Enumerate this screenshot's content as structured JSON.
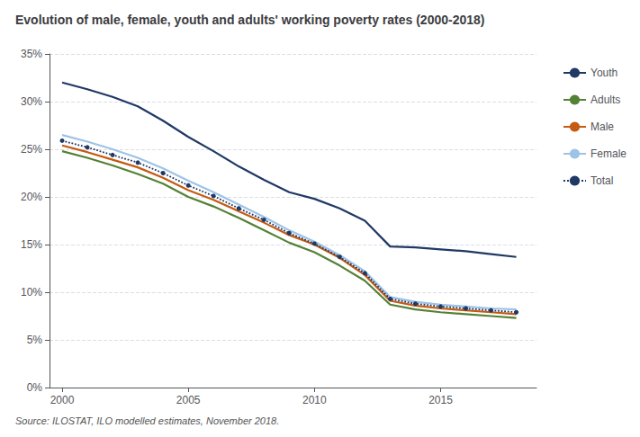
{
  "chart_data": {
    "type": "line",
    "title": "Evolution of male, female, youth and adults' working poverty rates (2000-2018)",
    "annotations": [
      "Source: ILOSTAT, ILO modelled estimates, November 2018."
    ],
    "x": [
      2000,
      2001,
      2002,
      2003,
      2004,
      2005,
      2006,
      2007,
      2008,
      2009,
      2010,
      2011,
      2012,
      2013,
      2014,
      2015,
      2016,
      2017,
      2018
    ],
    "series": [
      {
        "name": "Youth",
        "color": "#1f3864",
        "line_style": "solid",
        "values": [
          0.32,
          0.313,
          0.305,
          0.295,
          0.28,
          0.263,
          0.248,
          0.232,
          0.218,
          0.205,
          0.198,
          0.188,
          0.175,
          0.148,
          0.147,
          0.145,
          0.143,
          0.14,
          0.137
        ]
      },
      {
        "name": "Adults",
        "color": "#538135",
        "line_style": "solid",
        "values": [
          0.248,
          0.241,
          0.233,
          0.224,
          0.214,
          0.2,
          0.19,
          0.178,
          0.165,
          0.152,
          0.142,
          0.128,
          0.112,
          0.087,
          0.082,
          0.079,
          0.077,
          0.075,
          0.073
        ]
      },
      {
        "name": "Male",
        "color": "#c55a11",
        "line_style": "solid",
        "values": [
          0.254,
          0.247,
          0.239,
          0.231,
          0.22,
          0.207,
          0.197,
          0.185,
          0.173,
          0.16,
          0.15,
          0.136,
          0.118,
          0.091,
          0.086,
          0.083,
          0.081,
          0.079,
          0.077
        ]
      },
      {
        "name": "Female",
        "color": "#9dc3e6",
        "line_style": "solid",
        "values": [
          0.265,
          0.258,
          0.25,
          0.241,
          0.23,
          0.217,
          0.205,
          0.192,
          0.179,
          0.165,
          0.153,
          0.139,
          0.122,
          0.095,
          0.09,
          0.087,
          0.085,
          0.083,
          0.082
        ]
      },
      {
        "name": "Total",
        "color": "#1f3864",
        "line_style": "dotted",
        "marker": "circle",
        "values": [
          0.259,
          0.252,
          0.244,
          0.236,
          0.225,
          0.212,
          0.201,
          0.188,
          0.176,
          0.162,
          0.151,
          0.137,
          0.12,
          0.093,
          0.088,
          0.085,
          0.083,
          0.081,
          0.079
        ]
      }
    ],
    "xlim": [
      1999.5,
      2018.8
    ],
    "xticks": [
      2000,
      2005,
      2010,
      2015
    ],
    "ylim": [
      0,
      0.35
    ],
    "yticks": [
      {
        "value": 0.0,
        "label": "0%"
      },
      {
        "value": 0.05,
        "label": "5%"
      },
      {
        "value": 0.1,
        "label": "10%"
      },
      {
        "value": 0.15,
        "label": "15%"
      },
      {
        "value": 0.2,
        "label": "20%"
      },
      {
        "value": 0.25,
        "label": "25%"
      },
      {
        "value": 0.3,
        "label": "30%"
      },
      {
        "value": 0.35,
        "label": "35%"
      }
    ],
    "grid": true,
    "legend": "right"
  }
}
